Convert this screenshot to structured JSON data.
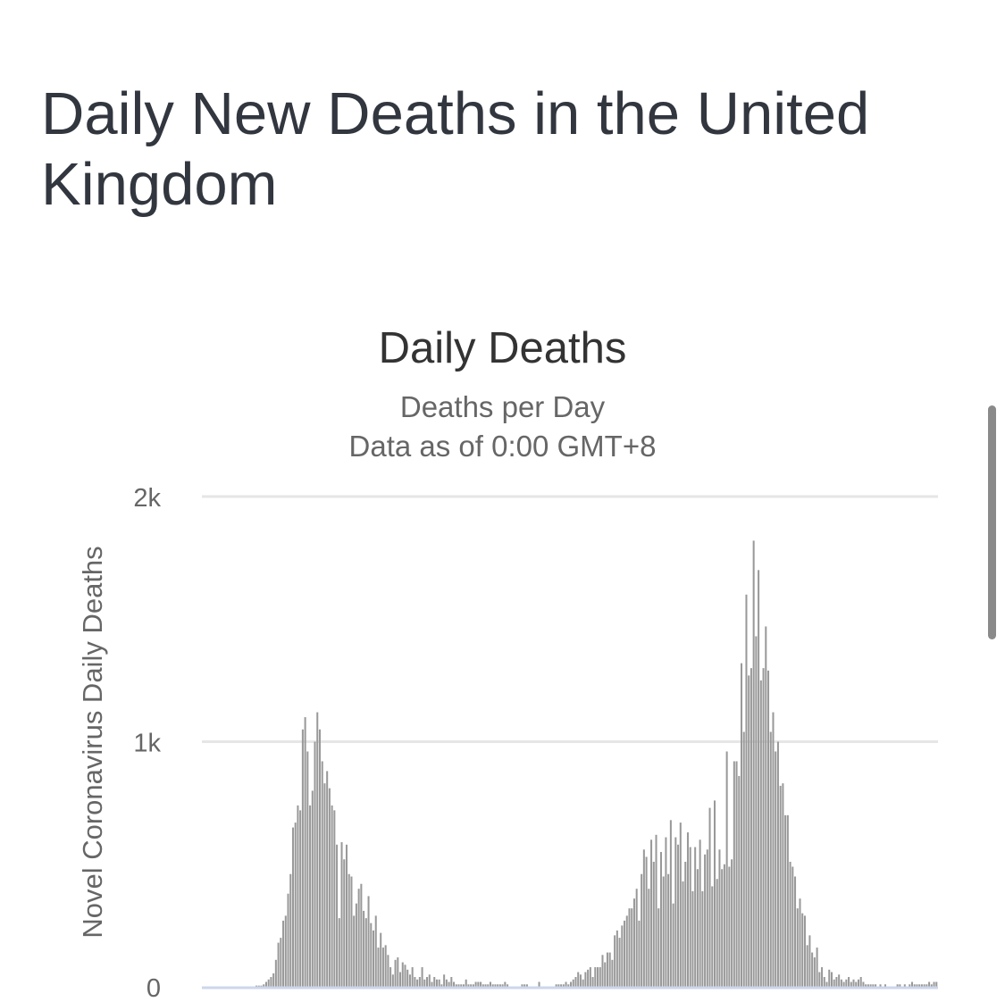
{
  "page": {
    "heading": "Daily New Deaths in the United Kingdom"
  },
  "colors": {
    "bar": "#999999",
    "gridline": "#e6e6e6",
    "axis_line": "#ccd6eb",
    "heading_text": "#32363f"
  },
  "chart_data": {
    "type": "bar",
    "title": "Daily Deaths",
    "subtitle": [
      "Deaths per Day",
      "Data as of 0:00 GMT+8"
    ],
    "ylabel": "Novel Coronavirus Daily Deaths",
    "xlabel": "",
    "ylim": [
      0,
      2000
    ],
    "y_ticks": [
      {
        "value": 0,
        "label": "0"
      },
      {
        "value": 1000,
        "label": "1k"
      },
      {
        "value": 2000,
        "label": "2k"
      }
    ],
    "grid": true,
    "legend": "none",
    "series": [
      {
        "values": [
          0,
          0,
          0,
          0,
          0,
          0,
          0,
          0,
          0,
          0,
          0,
          0,
          0,
          0,
          0,
          0,
          0,
          0,
          0,
          0,
          0,
          0,
          5,
          5,
          5,
          10,
          20,
          30,
          40,
          55,
          110,
          180,
          200,
          270,
          290,
          380,
          460,
          650,
          670,
          740,
          720,
          1050,
          1100,
          960,
          740,
          800,
          1000,
          1120,
          1050,
          920,
          830,
          880,
          810,
          740,
          720,
          580,
          280,
          590,
          520,
          580,
          460,
          450,
          290,
          340,
          400,
          420,
          310,
          280,
          370,
          260,
          230,
          290,
          160,
          220,
          160,
          170,
          130,
          80,
          50,
          110,
          120,
          60,
          100,
          90,
          70,
          50,
          80,
          40,
          30,
          40,
          80,
          30,
          40,
          50,
          20,
          40,
          30,
          30,
          10,
          50,
          30,
          20,
          40,
          20,
          10,
          10,
          10,
          10,
          30,
          10,
          10,
          10,
          20,
          20,
          20,
          10,
          10,
          10,
          20,
          10,
          10,
          10,
          10,
          10,
          20,
          10,
          0,
          0,
          0,
          0,
          0,
          10,
          10,
          10,
          0,
          0,
          0,
          0,
          20,
          0,
          0,
          0,
          0,
          0,
          0,
          10,
          10,
          10,
          10,
          20,
          10,
          20,
          30,
          40,
          60,
          50,
          30,
          60,
          70,
          80,
          40,
          80,
          80,
          80,
          130,
          100,
          140,
          140,
          110,
          210,
          230,
          200,
          250,
          270,
          290,
          320,
          320,
          360,
          400,
          270,
          460,
          560,
          530,
          400,
          600,
          510,
          620,
          320,
          550,
          450,
          610,
          460,
          680,
          340,
          610,
          580,
          670,
          430,
          510,
          630,
          570,
          390,
          570,
          480,
          600,
          390,
          540,
          560,
          730,
          410,
          760,
          440,
          560,
          480,
          500,
          960,
          490,
          520,
          920,
          920,
          860,
          1320,
          1040,
          1600,
          1270,
          1300,
          1820,
          1430,
          1700,
          1250,
          1300,
          1470,
          1290,
          1040,
          1120,
          960,
          1000,
          820,
          830,
          700,
          700,
          510,
          490,
          450,
          320,
          360,
          300,
          290,
          170,
          210,
          140,
          120,
          160,
          60,
          80,
          40,
          20,
          70,
          60,
          30,
          40,
          50,
          30,
          20,
          30,
          40,
          20,
          30,
          20,
          30,
          40,
          20,
          10,
          10,
          10,
          10,
          10,
          0,
          10,
          0,
          10,
          0,
          0,
          0,
          0,
          10,
          10,
          0,
          10,
          0,
          10,
          20,
          10,
          10,
          10,
          10,
          10,
          10,
          20,
          10,
          20,
          20
        ]
      }
    ]
  }
}
